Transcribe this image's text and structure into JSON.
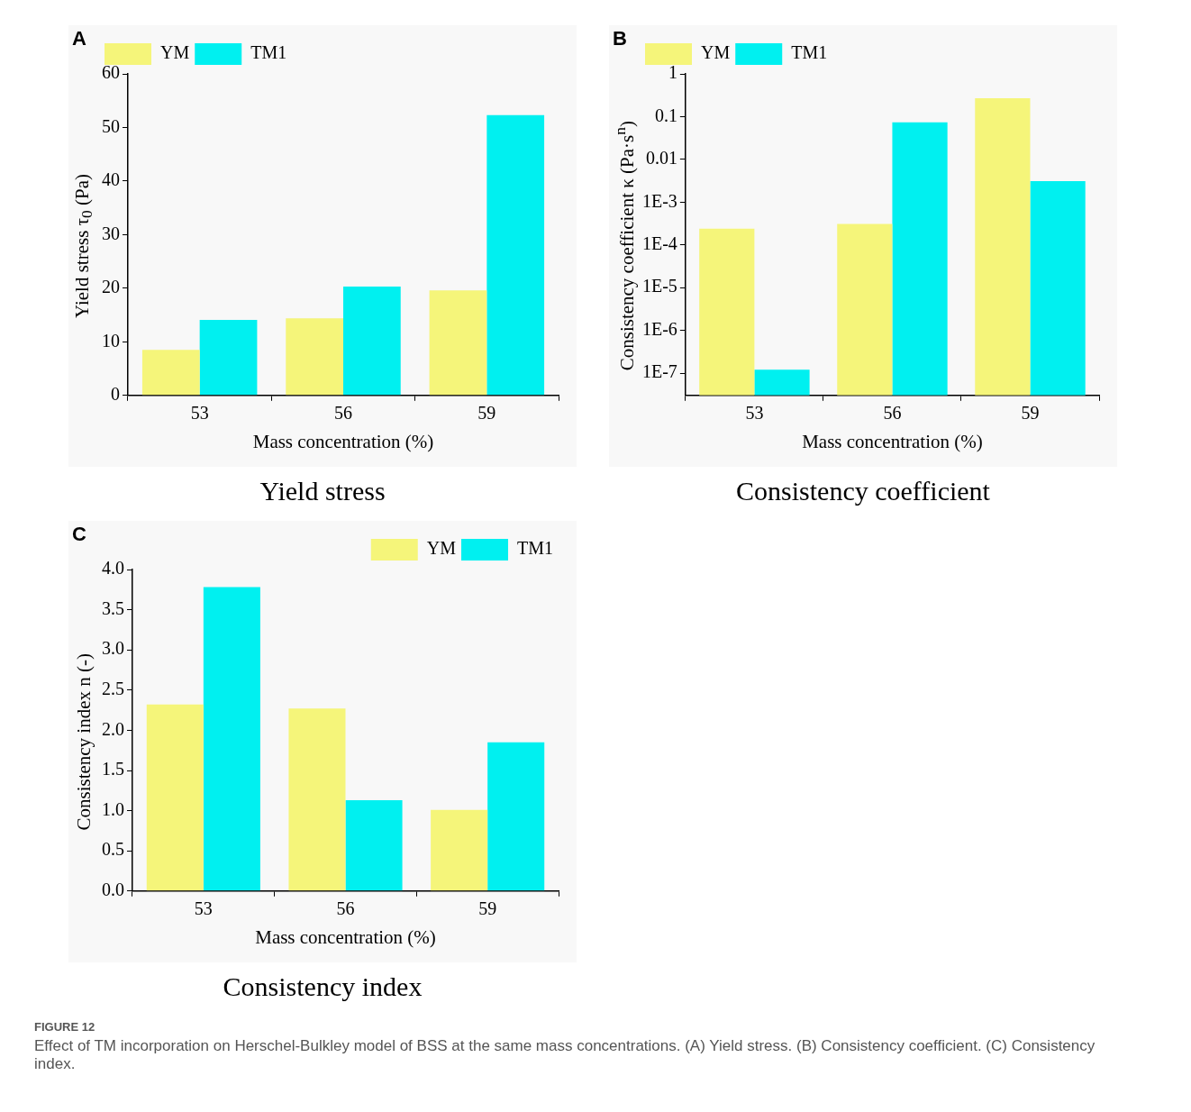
{
  "chart_data": [
    {
      "type": "bar",
      "title": "Yield stress",
      "xlabel": "Mass concentration (%)",
      "ylabel": "Yield stress τ$_{0}$ (Pa)",
      "categories": [
        "53",
        "56",
        "59"
      ],
      "series": [
        {
          "name": "YM",
          "color": "#f5f57a",
          "values": [
            8.5,
            14.4,
            19.6
          ]
        },
        {
          "name": "TM1",
          "color": "#00f0f0",
          "values": [
            14.1,
            20.3,
            52.3
          ]
        }
      ],
      "ylim": [
        0,
        60
      ],
      "yticks": [
        0,
        10,
        20,
        30,
        40,
        50,
        60
      ],
      "legend": "top left",
      "annotations": [
        "A"
      ]
    },
    {
      "type": "bar",
      "title": "Consistency coefficient",
      "xlabel": "Mass concentration (%)",
      "ylabel": "Consistency coefficient κ (Pa·s$^{n}$)",
      "categories": [
        "53",
        "56",
        "59"
      ],
      "series": [
        {
          "name": "YM",
          "color": "#f5f57a",
          "values": [
            0.00024,
            0.00031,
            0.27
          ]
        },
        {
          "name": "TM1",
          "color": "#00f0f0",
          "values": [
            1.2e-07,
            0.074,
            0.0031
          ]
        }
      ],
      "log": "y",
      "ylim": [
        3e-08,
        1
      ],
      "yticks": [
        {
          "value": 1e-07,
          "label": "1E-7"
        },
        {
          "value": 1e-06,
          "label": "1E-6"
        },
        {
          "value": 1e-05,
          "label": "1E-5"
        },
        {
          "value": 0.0001,
          "label": "1E-4"
        },
        {
          "value": 0.001,
          "label": "1E-3"
        },
        0.01,
        0.1,
        1
      ],
      "legend": "top left",
      "annotations": [
        "B"
      ]
    },
    {
      "type": "bar",
      "title": "Consistency index",
      "xlabel": "Mass concentration (%)",
      "ylabel": "Consistency index n (-)",
      "categories": [
        "53",
        "56",
        "59"
      ],
      "series": [
        {
          "name": "YM",
          "color": "#f5f57a",
          "values": [
            2.32,
            2.27,
            1.01
          ]
        },
        {
          "name": "TM1",
          "color": "#00f0f0",
          "values": [
            3.78,
            1.13,
            1.85
          ]
        }
      ],
      "ylim": [
        0,
        4
      ],
      "yticks": [
        {
          "value": 0,
          "label": "0.0"
        },
        {
          "value": 0.5,
          "label": "0.5"
        },
        {
          "value": 1,
          "label": "1.0"
        },
        {
          "value": 1.5,
          "label": "1.5"
        },
        {
          "value": 2,
          "label": "2.0"
        },
        {
          "value": 2.5,
          "label": "2.5"
        },
        {
          "value": 3,
          "label": "3.0"
        },
        {
          "value": 3.5,
          "label": "3.5"
        },
        {
          "value": 4,
          "label": "4.0"
        }
      ],
      "legend": "top right",
      "annotations": [
        "C",
        "FIGURE 12",
        "Effect of TM incorporation on Herschel-Bulkley model of BSS at the same mass concentrations. (A) Yield stress. (B) Consistency coefficient. (C) Consistency index."
      ]
    }
  ]
}
